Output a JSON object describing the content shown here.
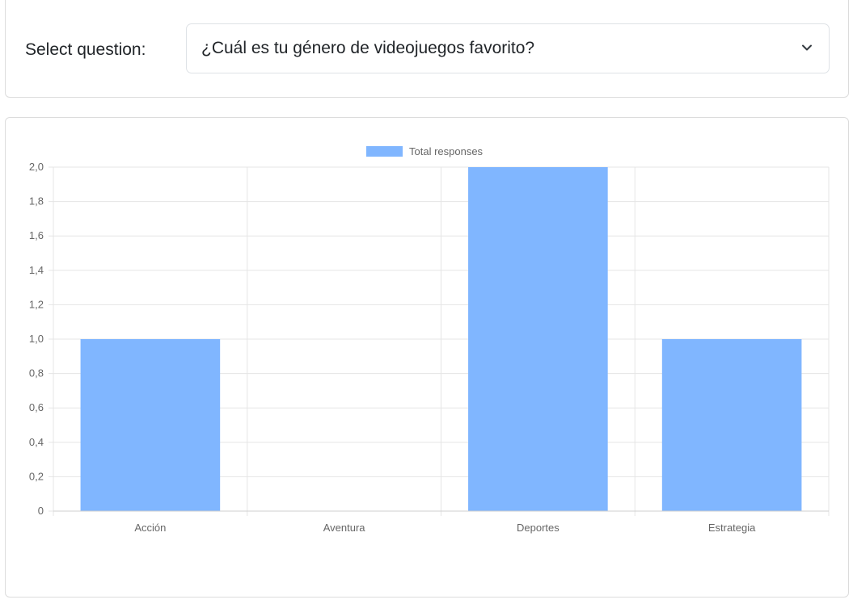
{
  "question_selector": {
    "label": "Select question:",
    "selected": "¿Cuál es tu género de videojuegos favorito?"
  },
  "chart_data": {
    "type": "bar",
    "categories": [
      "Acción",
      "Aventura",
      "Deportes",
      "Estrategia"
    ],
    "series": [
      {
        "name": "Total responses",
        "values": [
          1,
          0,
          2,
          1
        ],
        "color": "#80b6ff"
      }
    ],
    "ylim": [
      0,
      2
    ],
    "yticks": [
      "0",
      "0,2",
      "0,4",
      "0,6",
      "0,8",
      "1,0",
      "1,2",
      "1,4",
      "1,6",
      "1,8",
      "2,0"
    ],
    "grid": true,
    "legend": "top-center"
  },
  "colors": {
    "bar": "#80b6ff",
    "grid": "#e5e5e5",
    "text": "#666666"
  }
}
